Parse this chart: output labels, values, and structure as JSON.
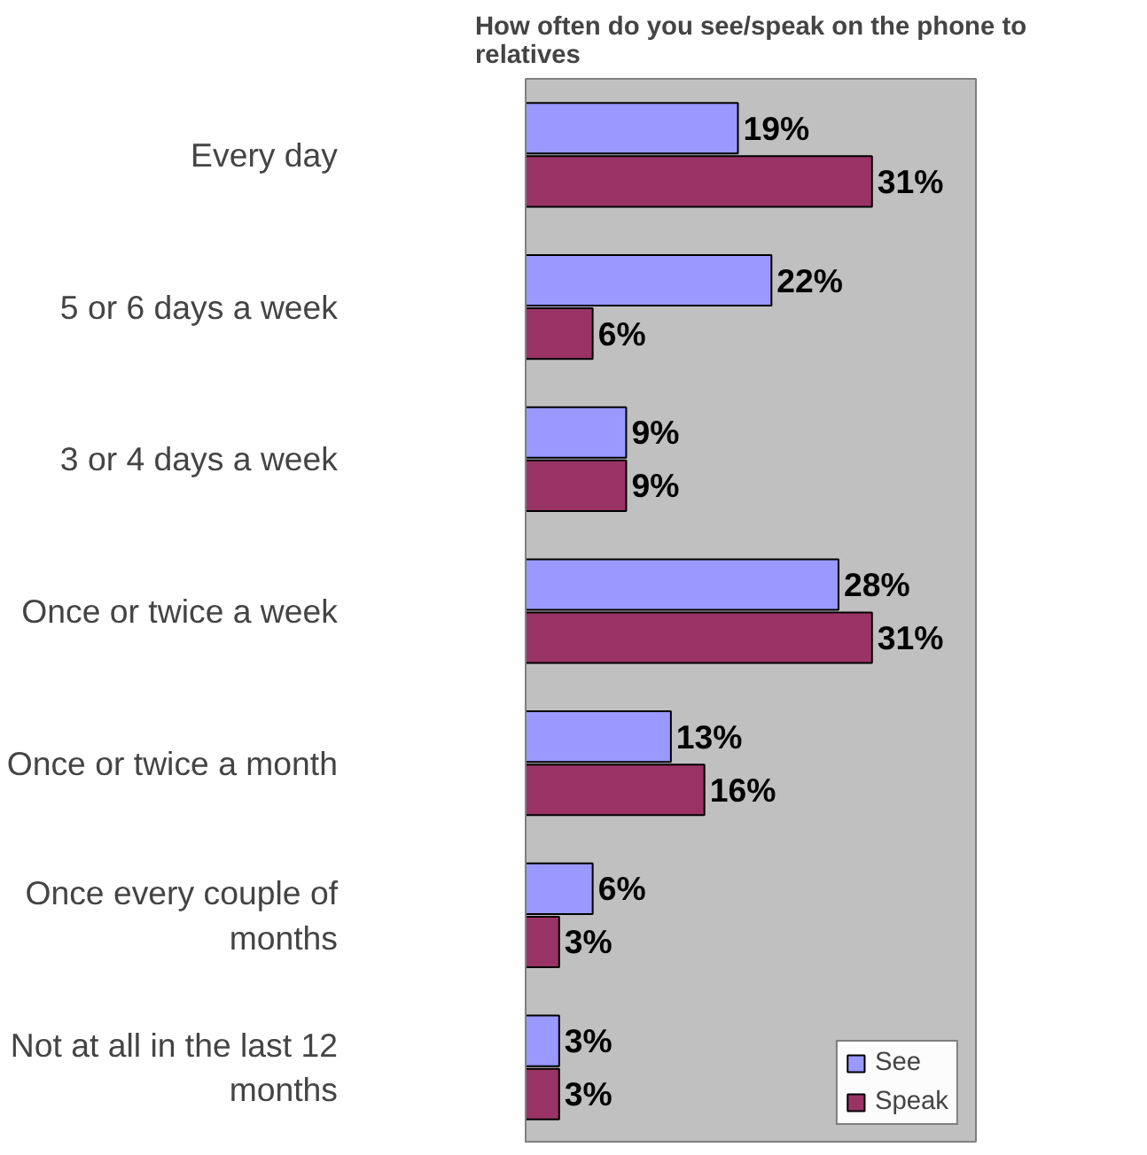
{
  "chart_data": {
    "type": "bar",
    "orientation": "horizontal",
    "title": "How often do you see/speak on the phone to relatives",
    "categories": [
      "Every day",
      "5 or 6 days a week",
      "3 or 4 days a week",
      "Once or twice a week",
      "Once or twice a month",
      "Once every couple of months",
      "Not at all in the last 12 months"
    ],
    "series": [
      {
        "name": "See",
        "color": "#9999ff",
        "values": [
          19,
          22,
          9,
          28,
          13,
          6,
          3
        ],
        "value_labels": [
          "19%",
          "22%",
          "9%",
          "28%",
          "13%",
          "6%",
          "3%"
        ]
      },
      {
        "name": "Speak",
        "color": "#993366",
        "values": [
          31,
          6,
          9,
          31,
          16,
          3,
          3
        ],
        "value_labels": [
          "31%",
          "6%",
          "9%",
          "31%",
          "16%",
          "3%",
          "3%"
        ]
      }
    ],
    "legend": "bottom right",
    "grid": false
  }
}
